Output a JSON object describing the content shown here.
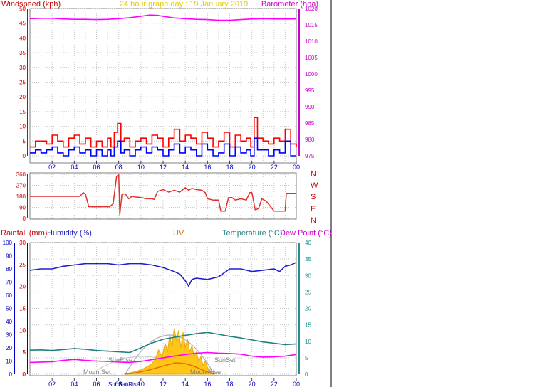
{
  "header": {
    "left_label": "Windspeed (kph)",
    "title": "24 hour graph day : 19 January 2019",
    "right_label": "Barometer (hpa)"
  },
  "lower_header": {
    "rainfall": "Rainfall (mm)",
    "humidity": "Humidity (%)",
    "uv": "UV",
    "temperature": "Temperature (°C)",
    "dewpoint": "Dew Point (°C)"
  },
  "colors": {
    "wind_gust": "#ff0000",
    "wind_avg": "#0000ff",
    "barometer": "#ff00ff",
    "direction": "#e03030",
    "humidity": "#2020d0",
    "temperature": "#208080",
    "dewpoint": "#ff00ff",
    "solar": "#ffc000",
    "uv": "#e07000",
    "axis_blue": "#0000c0",
    "title_yellow": "#e8c800",
    "temp_axis": "#209090"
  },
  "direction_labels": [
    "N",
    "W",
    "S",
    "E",
    "N"
  ],
  "astro": {
    "sunrise": "SunRise",
    "sunset": "SunSet",
    "moonset": "Moon Set",
    "moonrise": "Moon Rise",
    "sunrise_bottom": "SunRise",
    "sunset_bottom": "SunSet"
  },
  "chart_data": [
    {
      "type": "line",
      "name": "wind-barometer",
      "x_ticks": [
        "02",
        "04",
        "06",
        "08",
        "10",
        "12",
        "14",
        "16",
        "18",
        "20",
        "22",
        "00"
      ],
      "x_range_hours": [
        0,
        24
      ],
      "y_left": {
        "label": "Windspeed (kph)",
        "ylim": [
          0,
          50
        ],
        "ticks": [
          0,
          5,
          10,
          15,
          20,
          25,
          30,
          35,
          40,
          45,
          50
        ]
      },
      "y_right": {
        "label": "Barometer (hpa)",
        "ylim": [
          975,
          1020
        ],
        "ticks": [
          975,
          980,
          985,
          990,
          995,
          1000,
          1005,
          1010,
          1015,
          1020
        ]
      },
      "series": [
        {
          "name": "Barometer (hpa)",
          "axis": "right",
          "x": [
            0,
            1,
            2,
            3,
            4,
            5,
            6,
            7,
            8,
            9,
            10,
            10.8,
            11.5,
            12,
            13,
            14,
            15,
            16,
            17,
            18,
            19,
            20,
            21,
            22,
            23,
            24
          ],
          "values": [
            1016.9,
            1017.0,
            1017.0,
            1016.8,
            1016.7,
            1016.7,
            1016.6,
            1016.7,
            1016.9,
            1017.2,
            1017.6,
            1018.0,
            1017.9,
            1017.6,
            1017.1,
            1016.9,
            1016.7,
            1016.6,
            1016.4,
            1016.4,
            1016.6,
            1016.8,
            1016.9,
            1016.8,
            1016.8,
            1016.8
          ]
        },
        {
          "name": "Wind gust",
          "axis": "left",
          "x": [
            0,
            0.5,
            1,
            1.5,
            2,
            2.5,
            3,
            3.5,
            4,
            4.5,
            5,
            5.5,
            6,
            6.5,
            7,
            7.3,
            7.6,
            7.9,
            8.2,
            8.5,
            9,
            9.5,
            10,
            10.5,
            11,
            11.5,
            12,
            12.5,
            13,
            13.5,
            14,
            14.5,
            15,
            15.5,
            16,
            16.5,
            17,
            17.5,
            18,
            18.5,
            19,
            19.5,
            19.9,
            20.2,
            20.5,
            21,
            21.5,
            22,
            22.5,
            23,
            23.5,
            24
          ],
          "values": [
            3,
            5,
            5,
            4,
            7,
            5,
            3,
            6,
            7,
            4,
            6,
            3,
            5,
            3,
            6,
            3,
            8,
            11,
            5,
            6,
            3,
            5,
            6,
            4,
            7,
            6,
            3,
            6,
            9,
            5,
            7,
            6,
            4,
            8,
            6,
            3,
            5,
            8,
            3,
            7,
            5,
            6,
            3,
            13,
            6,
            5,
            4,
            6,
            5,
            9,
            4,
            3
          ]
        },
        {
          "name": "Wind average",
          "axis": "left",
          "x": [
            0,
            0.5,
            1,
            1.5,
            2,
            2.5,
            3,
            3.5,
            4,
            4.5,
            5,
            5.5,
            6,
            6.5,
            7,
            7.3,
            7.6,
            7.9,
            8.2,
            8.5,
            9,
            9.5,
            10,
            10.5,
            11,
            11.5,
            12,
            12.5,
            13,
            13.5,
            14,
            14.5,
            15,
            15.5,
            16,
            16.5,
            17,
            17.5,
            18,
            18.5,
            19,
            19.5,
            19.9,
            20.2,
            20.5,
            21,
            21.5,
            22,
            22.5,
            23,
            23.5,
            24
          ],
          "values": [
            1,
            2,
            1,
            2,
            3,
            1,
            0,
            2,
            3,
            1,
            2,
            0,
            2,
            0,
            2,
            0,
            3,
            5,
            1,
            2,
            0,
            2,
            3,
            1,
            3,
            2,
            0,
            2,
            4,
            1,
            3,
            2,
            0,
            4,
            2,
            0,
            1,
            4,
            0,
            3,
            1,
            2,
            0,
            6,
            2,
            2,
            0,
            2,
            1,
            5,
            0,
            0
          ]
        }
      ]
    },
    {
      "type": "line",
      "name": "wind-direction",
      "x_range_hours": [
        0,
        24
      ],
      "y": {
        "ylim": [
          0,
          360
        ],
        "ticks": [
          0,
          90,
          180,
          270,
          360
        ]
      },
      "series": [
        {
          "name": "Wind direction",
          "x": [
            0,
            4.5,
            4.8,
            5,
            5.3,
            7,
            7.2,
            7.5,
            7.8,
            8,
            8.1,
            8.3,
            8.6,
            8.9,
            9.2,
            9.5,
            10,
            10.5,
            11,
            11.2,
            11.5,
            12,
            12.5,
            13,
            13.5,
            14,
            14.3,
            14.6,
            15,
            15.5,
            15.8,
            16,
            16.5,
            17,
            17.2,
            17.6,
            17.9,
            18.2,
            18.5,
            19,
            19.5,
            19.8,
            20,
            20.3,
            20.6,
            20.9,
            21.3,
            22,
            22.5,
            23,
            23.1,
            23.5,
            24
          ],
          "values": [
            180,
            180,
            210,
            200,
            95,
            95,
            95,
            120,
            340,
            360,
            30,
            200,
            200,
            160,
            180,
            175,
            170,
            160,
            160,
            155,
            220,
            235,
            215,
            230,
            215,
            250,
            230,
            245,
            235,
            230,
            210,
            160,
            150,
            150,
            60,
            60,
            170,
            170,
            150,
            160,
            150,
            210,
            210,
            70,
            80,
            160,
            140,
            60,
            60,
            60,
            205,
            205,
            205
          ]
        }
      ]
    },
    {
      "type": "line",
      "name": "temperature-humidity",
      "x_ticks": [
        "02",
        "04",
        "06",
        "08",
        "10",
        "12",
        "14",
        "16",
        "18",
        "20",
        "22",
        "00"
      ],
      "x_range_hours": [
        0,
        24
      ],
      "y_humidity": {
        "label": "Humidity (%)",
        "ylim": [
          0,
          100
        ],
        "ticks": [
          0,
          10,
          20,
          30,
          40,
          50,
          60,
          70,
          80,
          90,
          100
        ]
      },
      "y_rainfall": {
        "label": "Rainfall (mm)",
        "ylim": [
          0,
          30
        ],
        "ticks": [
          0,
          5,
          10,
          15,
          20,
          25,
          30
        ]
      },
      "y_uv": {
        "ylim": [
          0,
          10
        ],
        "ticks": [
          0,
          5,
          10
        ]
      },
      "y_temperature": {
        "label": "Temperature (°C)",
        "ylim": [
          0,
          40
        ],
        "ticks": [
          0,
          5,
          10,
          15,
          20,
          25,
          30,
          35,
          40
        ]
      },
      "series": [
        {
          "name": "Humidity (%)",
          "axis": "humidity",
          "x": [
            0,
            1,
            2,
            3,
            4,
            5,
            6,
            7,
            8,
            9,
            10,
            11,
            12,
            13,
            13.5,
            14,
            14.3,
            14.6,
            15,
            16,
            17,
            18,
            19,
            20,
            21,
            22,
            22.5,
            23,
            23.5,
            24
          ],
          "values": [
            79,
            80,
            80,
            82,
            83,
            84,
            84,
            84,
            83,
            84,
            84,
            83,
            81,
            78,
            76,
            71,
            67,
            72,
            73,
            72,
            74,
            80,
            80,
            78,
            79,
            80,
            78,
            82,
            83,
            85
          ]
        },
        {
          "name": "Temperature (°C)",
          "axis": "temperature",
          "x": [
            0,
            1,
            2,
            3,
            4,
            5,
            6,
            7,
            8,
            9,
            10,
            11,
            12,
            13,
            14,
            15,
            16,
            17,
            18,
            19,
            20,
            21,
            22,
            23,
            24
          ],
          "values": [
            7.3,
            7.4,
            7.2,
            7.5,
            7.8,
            7.6,
            7.2,
            7.0,
            6.8,
            6.6,
            8.0,
            9.5,
            10.6,
            11.2,
            11.8,
            12.3,
            12.7,
            12.1,
            11.5,
            11.0,
            10.4,
            9.8,
            9.4,
            9.0,
            9.2
          ]
        },
        {
          "name": "Dew Point (°C)",
          "axis": "temperature",
          "x": [
            0,
            1,
            2,
            3,
            4,
            5,
            6,
            7,
            8,
            9,
            10,
            11,
            12,
            13,
            14,
            15,
            16,
            17,
            18,
            19,
            20,
            21,
            22,
            23,
            24
          ],
          "values": [
            3.6,
            3.7,
            3.8,
            4.2,
            4.5,
            4.2,
            4.0,
            3.9,
            3.7,
            3.6,
            3.9,
            4.4,
            5.0,
            5.5,
            6.0,
            6.4,
            6.6,
            6.4,
            6.3,
            6.1,
            5.5,
            5.2,
            5.3,
            5.5,
            6.0
          ]
        },
        {
          "name": "Solar",
          "axis": "uv",
          "x": [
            8.6,
            9,
            9.5,
            10,
            10.5,
            11,
            11.3,
            11.6,
            11.9,
            12.2,
            12.4,
            12.6,
            12.8,
            13.0,
            13.2,
            13.4,
            13.6,
            13.8,
            14.0,
            14.2,
            14.4,
            14.6,
            14.8,
            15.0,
            15.2,
            15.4,
            15.6,
            15.8,
            16.0,
            16.3,
            16.6
          ],
          "values": [
            0,
            0.3,
            0.6,
            1.0,
            1.6,
            2.4,
            3.5,
            5.5,
            4.0,
            7.0,
            5.0,
            9.0,
            6.0,
            10.5,
            7.5,
            10.0,
            6.0,
            9.5,
            6.0,
            8.0,
            5.0,
            6.5,
            4.0,
            5.0,
            3.0,
            4.0,
            2.0,
            3.0,
            1.5,
            0.5,
            0
          ]
        },
        {
          "name": "UV",
          "axis": "uv",
          "x": [
            8.6,
            9.5,
            10.5,
            11.5,
            12.5,
            13.2,
            14,
            14.8,
            15.5,
            16.2,
            16.6
          ],
          "values": [
            0,
            0.3,
            0.8,
            1.5,
            2.2,
            2.6,
            2.4,
            1.8,
            1.0,
            0.3,
            0
          ]
        }
      ]
    }
  ]
}
